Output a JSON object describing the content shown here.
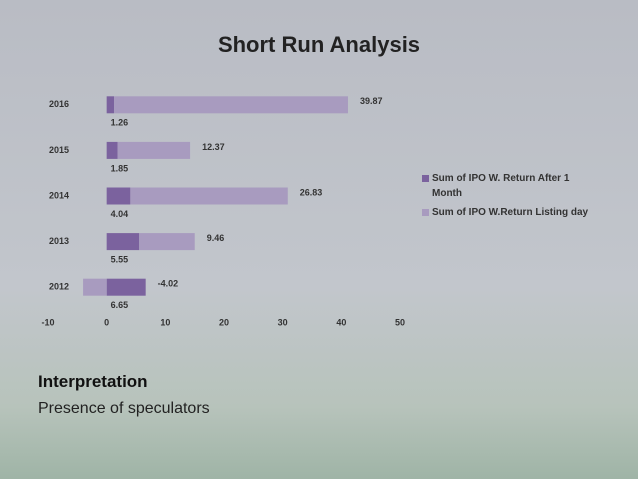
{
  "chart_data": {
    "type": "stacked-barh",
    "title": "Short Run Analysis",
    "categories": [
      "2012",
      "2013",
      "2014",
      "2015",
      "2016"
    ],
    "series": [
      {
        "name": "Sum of IPO W. Return After 1 Month",
        "color": "#7b629e",
        "values": [
          6.65,
          5.55,
          4.04,
          1.85,
          1.26
        ]
      },
      {
        "name": "Sum of IPO W.Return Listing day",
        "color": "#a89bbf",
        "values": [
          -4.02,
          9.46,
          26.83,
          12.37,
          39.87
        ]
      }
    ],
    "xlim": [
      -10,
      50
    ],
    "xticks": [
      -10,
      0,
      10,
      20,
      30,
      40,
      50
    ],
    "grid": false,
    "legend": "right"
  },
  "interpretation": {
    "heading": "Interpretation",
    "text": "Presence of speculators"
  }
}
